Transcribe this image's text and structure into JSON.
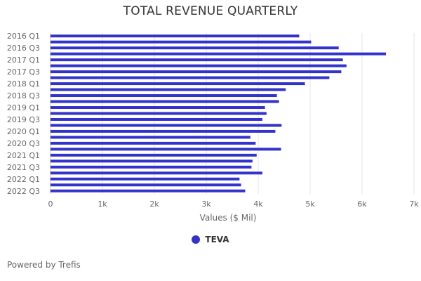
{
  "chart_data": {
    "type": "bar",
    "orientation": "horizontal",
    "title": "TOTAL REVENUE QUARTERLY",
    "xlabel": "Values ($ Mil)",
    "ylabel": "",
    "xlim": [
      0,
      7000
    ],
    "x_ticks": [
      {
        "value": 0,
        "label": "0"
      },
      {
        "value": 1000,
        "label": "1k"
      },
      {
        "value": 2000,
        "label": "2k"
      },
      {
        "value": 3000,
        "label": "3k"
      },
      {
        "value": 4000,
        "label": "4k"
      },
      {
        "value": 5000,
        "label": "5k"
      },
      {
        "value": 6000,
        "label": "6k"
      },
      {
        "value": 7000,
        "label": "7k"
      }
    ],
    "grid": true,
    "legend_position": "bottom-center",
    "categories": [
      "2016 Q1",
      "2016 Q2",
      "2016 Q3",
      "2016 Q4",
      "2017 Q1",
      "2017 Q2",
      "2017 Q3",
      "2017 Q4",
      "2018 Q1",
      "2018 Q2",
      "2018 Q3",
      "2018 Q4",
      "2019 Q1",
      "2019 Q2",
      "2019 Q3",
      "2019 Q4",
      "2020 Q1",
      "2020 Q2",
      "2020 Q3",
      "2020 Q4",
      "2021 Q1",
      "2021 Q2",
      "2021 Q3",
      "2021 Q4",
      "2022 Q1",
      "2022 Q2",
      "2022 Q3"
    ],
    "shown_category_labels": [
      "2016 Q1",
      "2016 Q3",
      "2017 Q1",
      "2017 Q3",
      "2018 Q1",
      "2018 Q3",
      "2019 Q1",
      "2019 Q3",
      "2020 Q1",
      "2020 Q3",
      "2021 Q1",
      "2021 Q3",
      "2022 Q1",
      "2022 Q3"
    ],
    "series": [
      {
        "name": "TEVA",
        "color": "#3333cc",
        "values": [
          4790,
          5020,
          5550,
          6460,
          5630,
          5700,
          5600,
          5370,
          4900,
          4530,
          4360,
          4400,
          4130,
          4160,
          4080,
          4450,
          4330,
          3850,
          3950,
          4440,
          3970,
          3890,
          3870,
          4080,
          3640,
          3670,
          3750
        ]
      }
    ]
  },
  "footer": {
    "credit": "Powered by Trefis"
  }
}
